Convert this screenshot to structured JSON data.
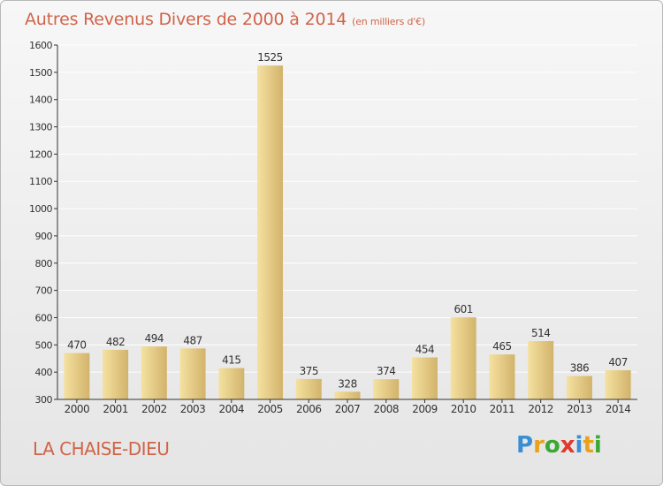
{
  "header": {
    "title": "Autres Revenus Divers de 2000 à 2014",
    "unit": "(en milliers d'€)"
  },
  "footer": {
    "place": "LA CHAISE-DIEU",
    "logo_letters": [
      "P",
      "r",
      "o",
      "x",
      "i",
      "t",
      "i"
    ],
    "logo_colors": [
      "#3a8fd4",
      "#e8a21a",
      "#3aa835",
      "#e03a2a",
      "#3a8fd4",
      "#e8a21a",
      "#3aa835"
    ]
  },
  "colors": {
    "bar_light": "#f5e1a0",
    "bar_dark": "#d2b36b",
    "title": "#d0644a",
    "grid": "#ffffff",
    "axis": "#333333"
  },
  "chart_data": {
    "type": "bar",
    "title": "Autres Revenus Divers de 2000 à 2014",
    "subtitle": "(en milliers d'€)",
    "categories": [
      "2000",
      "2001",
      "2002",
      "2003",
      "2004",
      "2005",
      "2006",
      "2007",
      "2008",
      "2009",
      "2010",
      "2011",
      "2012",
      "2013",
      "2014"
    ],
    "values": [
      470,
      482,
      494,
      487,
      415,
      1525,
      375,
      328,
      374,
      454,
      601,
      465,
      514,
      386,
      407
    ],
    "ylim": [
      300,
      1600
    ],
    "yticks": [
      300,
      400,
      500,
      600,
      700,
      800,
      900,
      1000,
      1100,
      1200,
      1300,
      1400,
      1500,
      1600
    ],
    "grid": true,
    "xlabel": "",
    "ylabel": ""
  }
}
